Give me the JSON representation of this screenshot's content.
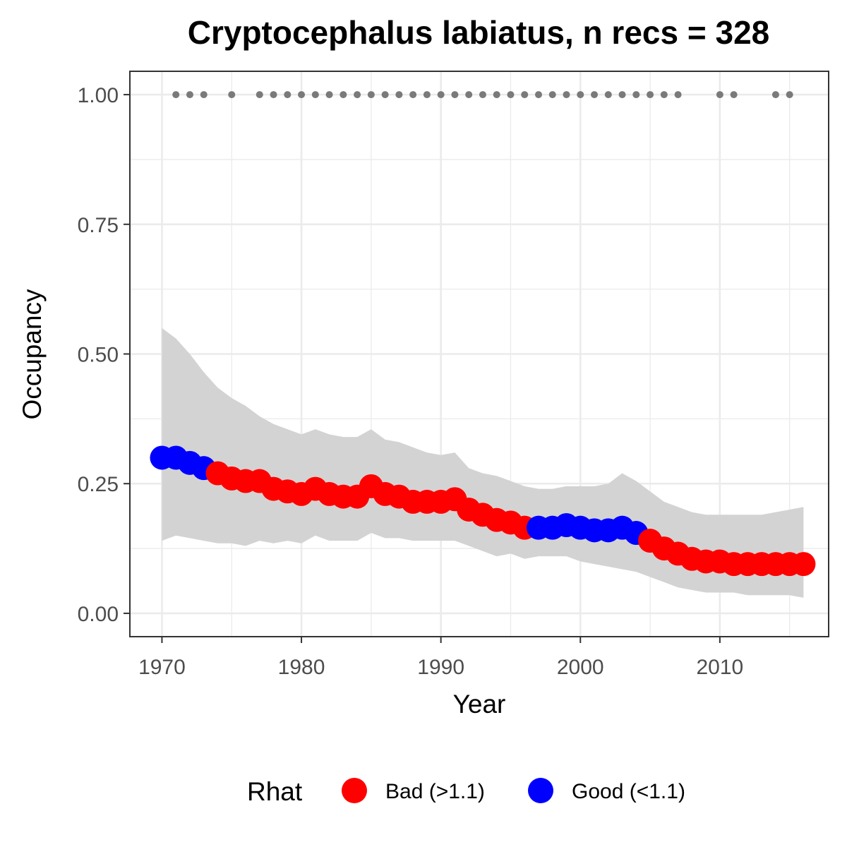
{
  "chart_data": {
    "type": "line",
    "title": "Cryptocephalus labiatus, n recs = 328",
    "xlabel": "Year",
    "ylabel": "Occupancy",
    "xlim": [
      1967.7,
      2017.8
    ],
    "ylim": [
      -0.045,
      1.045
    ],
    "x_ticks": [
      1970,
      1980,
      1990,
      2000,
      2010
    ],
    "x_tick_labels": [
      "1970",
      "1980",
      "1990",
      "2000",
      "2010"
    ],
    "y_ticks": [
      0,
      0.25,
      0.5,
      0.75,
      1
    ],
    "y_tick_labels": [
      "0.00",
      "0.25",
      "0.50",
      "0.75",
      "1.00"
    ],
    "grid": true,
    "colors": {
      "bad": "#ff0000",
      "good": "#0000ff",
      "ribbon": "#d3d3d3",
      "records": "#7a7a7a",
      "grid": "#ebebeb"
    },
    "legend": {
      "title": "Rhat",
      "position": "bottom",
      "items": [
        {
          "key": "bad",
          "label": "Bad (>1.1)"
        },
        {
          "key": "good",
          "label": "Good (<1.1)"
        }
      ]
    },
    "series": [
      {
        "x": [
          1970,
          1971,
          1972,
          1973,
          1974,
          1975,
          1976,
          1977,
          1978,
          1979,
          1980,
          1981,
          1982,
          1983,
          1984,
          1985,
          1986,
          1987,
          1988,
          1989,
          1990,
          1991,
          1992,
          1993,
          1994,
          1995,
          1996,
          1997,
          1998,
          1999,
          2000,
          2001,
          2002,
          2003,
          2004,
          2005,
          2006,
          2007,
          2008,
          2009,
          2010,
          2011,
          2012,
          2013,
          2014,
          2015,
          2016
        ],
        "occupancy": [
          0.3,
          0.3,
          0.29,
          0.28,
          0.27,
          0.26,
          0.255,
          0.255,
          0.24,
          0.235,
          0.23,
          0.24,
          0.23,
          0.225,
          0.225,
          0.245,
          0.23,
          0.225,
          0.215,
          0.215,
          0.215,
          0.22,
          0.2,
          0.19,
          0.18,
          0.175,
          0.165,
          0.165,
          0.165,
          0.17,
          0.165,
          0.16,
          0.16,
          0.165,
          0.155,
          0.14,
          0.125,
          0.115,
          0.105,
          0.1,
          0.1,
          0.095,
          0.095,
          0.095,
          0.095,
          0.095,
          0.095
        ],
        "rhat": [
          "good",
          "good",
          "good",
          "good",
          "bad",
          "bad",
          "bad",
          "bad",
          "bad",
          "bad",
          "bad",
          "bad",
          "bad",
          "bad",
          "bad",
          "bad",
          "bad",
          "bad",
          "bad",
          "bad",
          "bad",
          "bad",
          "bad",
          "bad",
          "bad",
          "bad",
          "bad",
          "good",
          "good",
          "good",
          "good",
          "good",
          "good",
          "good",
          "good",
          "bad",
          "bad",
          "bad",
          "bad",
          "bad",
          "bad",
          "bad",
          "bad",
          "bad",
          "bad",
          "bad",
          "bad"
        ],
        "lower": [
          0.14,
          0.15,
          0.145,
          0.14,
          0.135,
          0.135,
          0.13,
          0.14,
          0.135,
          0.14,
          0.135,
          0.15,
          0.14,
          0.14,
          0.14,
          0.155,
          0.145,
          0.145,
          0.14,
          0.14,
          0.14,
          0.14,
          0.13,
          0.12,
          0.11,
          0.115,
          0.105,
          0.11,
          0.11,
          0.11,
          0.1,
          0.095,
          0.09,
          0.085,
          0.08,
          0.07,
          0.06,
          0.05,
          0.045,
          0.04,
          0.04,
          0.04,
          0.035,
          0.035,
          0.035,
          0.035,
          0.03
        ],
        "upper": [
          0.55,
          0.53,
          0.5,
          0.465,
          0.435,
          0.415,
          0.4,
          0.38,
          0.365,
          0.355,
          0.345,
          0.355,
          0.345,
          0.34,
          0.34,
          0.355,
          0.335,
          0.33,
          0.32,
          0.31,
          0.305,
          0.31,
          0.28,
          0.27,
          0.265,
          0.255,
          0.245,
          0.24,
          0.24,
          0.245,
          0.245,
          0.245,
          0.25,
          0.27,
          0.255,
          0.235,
          0.215,
          0.205,
          0.195,
          0.19,
          0.19,
          0.19,
          0.19,
          0.19,
          0.195,
          0.2,
          0.205
        ]
      }
    ],
    "record_years": [
      1971,
      1972,
      1973,
      1975,
      1977,
      1978,
      1979,
      1980,
      1981,
      1982,
      1983,
      1984,
      1985,
      1986,
      1987,
      1988,
      1989,
      1990,
      1991,
      1992,
      1993,
      1994,
      1995,
      1996,
      1997,
      1998,
      1999,
      2000,
      2001,
      2002,
      2003,
      2004,
      2005,
      2006,
      2007,
      2010,
      2011,
      2014,
      2015
    ],
    "record_value": 1.0
  }
}
